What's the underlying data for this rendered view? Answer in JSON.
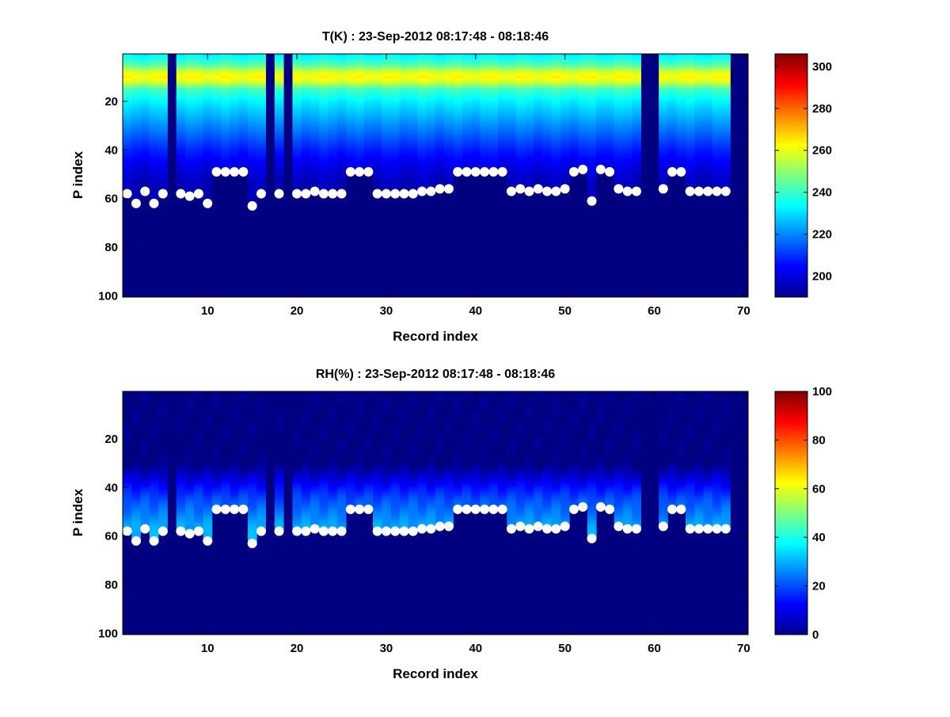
{
  "chart_data": [
    {
      "type": "heatmap",
      "variable": "T",
      "title": "T(K) : 23-Sep-2012 08:17:48 - 08:18:46",
      "xlabel": "Record index",
      "ylabel": "P index",
      "xlim": [
        0.5,
        70.5
      ],
      "ylim": [
        100,
        1
      ],
      "xticks": [
        "10",
        "20",
        "30",
        "40",
        "50",
        "60",
        "70"
      ],
      "yticks": [
        "20",
        "40",
        "60",
        "80",
        "100"
      ],
      "colorbar": {
        "range": [
          190,
          306
        ],
        "ticks": [
          "200",
          "220",
          "240",
          "260",
          "280",
          "300"
        ],
        "colormap": "jet"
      },
      "profile": {
        "description": "temperature by P index for valid records; tropopause warm band near P index 10",
        "p_index": [
          1,
          5,
          8,
          10,
          12,
          15,
          20,
          25,
          30,
          35,
          40,
          45,
          50,
          55
        ],
        "values_K": [
          232,
          243,
          258,
          263,
          258,
          241,
          232,
          226,
          220,
          214,
          208,
          203,
          199,
          196
        ]
      },
      "blank_records": [
        6,
        17,
        19,
        59,
        60,
        69,
        70
      ],
      "surface_markers": {
        "records": [
          1,
          2,
          3,
          4,
          5,
          7,
          8,
          9,
          10,
          11,
          12,
          13,
          14,
          15,
          16,
          18,
          20,
          21,
          22,
          23,
          24,
          25,
          26,
          27,
          28,
          29,
          30,
          31,
          32,
          33,
          34,
          35,
          36,
          37,
          38,
          39,
          40,
          41,
          42,
          43,
          44,
          45,
          46,
          47,
          48,
          49,
          50,
          51,
          52,
          53,
          54,
          55,
          56,
          57,
          58,
          61,
          62,
          63,
          64,
          65,
          66,
          67,
          68
        ],
        "p_index": [
          58,
          62,
          57,
          62,
          58,
          58,
          59,
          58,
          62,
          49,
          49,
          49,
          49,
          63,
          58,
          58,
          58,
          58,
          57,
          58,
          58,
          58,
          49,
          49,
          49,
          58,
          58,
          58,
          58,
          58,
          57,
          57,
          56,
          56,
          49,
          49,
          49,
          49,
          49,
          49,
          57,
          56,
          57,
          56,
          57,
          57,
          56,
          49,
          48,
          61,
          48,
          49,
          56,
          57,
          57,
          56,
          49,
          49,
          57,
          57,
          57,
          57,
          57
        ]
      }
    },
    {
      "type": "heatmap",
      "variable": "RH",
      "title": "RH(%) : 23-Sep-2012 08:17:48 - 08:18:46",
      "xlabel": "Record index",
      "ylabel": "P index",
      "xlim": [
        0.5,
        70.5
      ],
      "ylim": [
        100,
        1
      ],
      "xticks": [
        "10",
        "20",
        "30",
        "40",
        "50",
        "60",
        "70"
      ],
      "yticks": [
        "20",
        "40",
        "60",
        "80",
        "100"
      ],
      "colorbar": {
        "range": [
          0,
          100
        ],
        "ticks": [
          "0",
          "20",
          "40",
          "60",
          "80",
          "100"
        ],
        "colormap": "jet"
      },
      "profile": {
        "description": "relative humidity by P index; near zero aloft, 10-30% just above surface",
        "p_index": [
          1,
          30,
          36,
          40,
          45,
          50,
          55,
          60
        ],
        "values_pct": [
          0,
          0,
          8,
          14,
          20,
          24,
          28,
          30
        ]
      },
      "blank_records": [
        6,
        17,
        19,
        59,
        60,
        69,
        70
      ],
      "surface_markers": {
        "records": [
          1,
          2,
          3,
          4,
          5,
          7,
          8,
          9,
          10,
          11,
          12,
          13,
          14,
          15,
          16,
          18,
          20,
          21,
          22,
          23,
          24,
          25,
          26,
          27,
          28,
          29,
          30,
          31,
          32,
          33,
          34,
          35,
          36,
          37,
          38,
          39,
          40,
          41,
          42,
          43,
          44,
          45,
          46,
          47,
          48,
          49,
          50,
          51,
          52,
          53,
          54,
          55,
          56,
          57,
          58,
          61,
          62,
          63,
          64,
          65,
          66,
          67,
          68
        ],
        "p_index": [
          58,
          62,
          57,
          62,
          58,
          58,
          59,
          58,
          62,
          49,
          49,
          49,
          49,
          63,
          58,
          58,
          58,
          58,
          57,
          58,
          58,
          58,
          49,
          49,
          49,
          58,
          58,
          58,
          58,
          58,
          57,
          57,
          56,
          56,
          49,
          49,
          49,
          49,
          49,
          49,
          57,
          56,
          57,
          56,
          57,
          57,
          56,
          49,
          48,
          61,
          48,
          49,
          56,
          57,
          57,
          56,
          49,
          49,
          57,
          57,
          57,
          57,
          57
        ]
      }
    }
  ]
}
